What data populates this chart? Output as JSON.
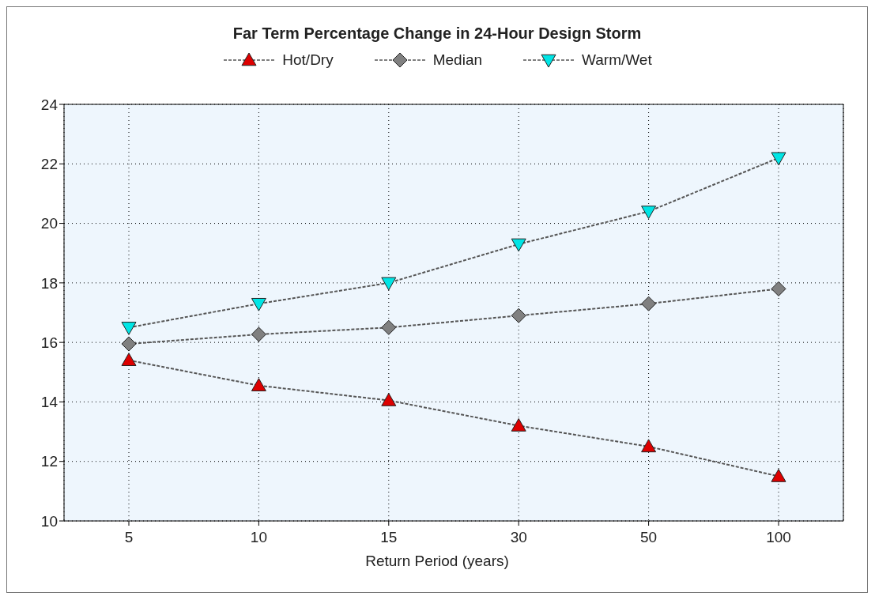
{
  "chart_data": {
    "type": "line",
    "title": "Far Term Percentage Change in 24-Hour Design Storm",
    "xlabel": "Return Period (years)",
    "categories": [
      "5",
      "10",
      "15",
      "30",
      "50",
      "100"
    ],
    "series": [
      {
        "name": "Hot/Dry",
        "color": "#dd0000",
        "marker": "triangle",
        "values": [
          15.4,
          14.55,
          14.05,
          13.2,
          12.5,
          11.5
        ]
      },
      {
        "name": "Median",
        "color": "#808080",
        "marker": "diamond",
        "values": [
          15.95,
          16.27,
          16.5,
          16.9,
          17.3,
          17.8
        ]
      },
      {
        "name": "Warm/Wet",
        "color": "#00e5e5",
        "marker": "triangle-down",
        "values": [
          16.5,
          17.3,
          18.0,
          19.3,
          20.4,
          22.2
        ]
      }
    ],
    "ylim": [
      10,
      24
    ],
    "yticks": [
      10,
      12,
      14,
      16,
      18,
      20,
      22,
      24
    ],
    "grid": true,
    "legend": "top",
    "line_style": "dashed"
  }
}
